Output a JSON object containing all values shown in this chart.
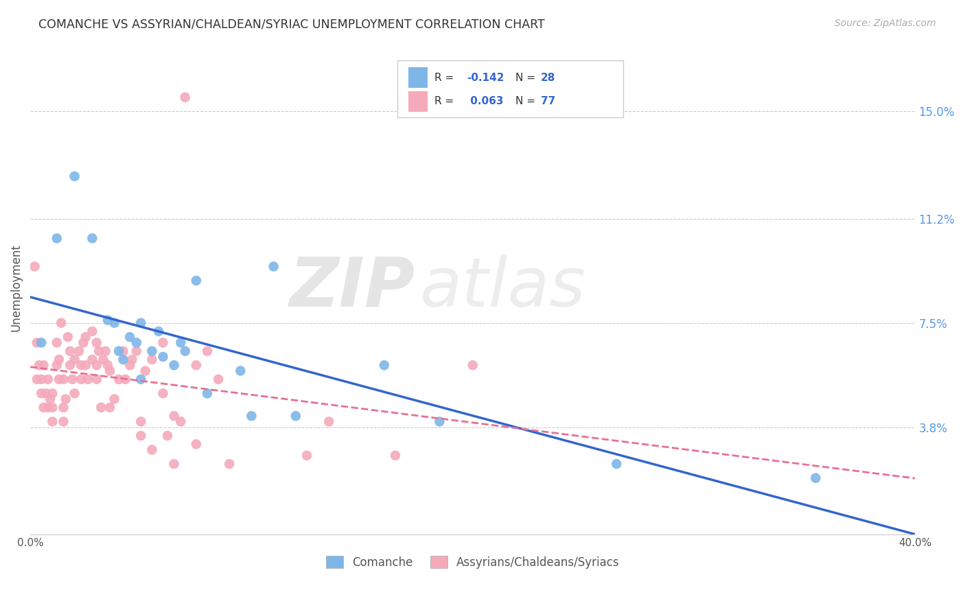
{
  "title": "COMANCHE VS ASSYRIAN/CHALDEAN/SYRIAC UNEMPLOYMENT CORRELATION CHART",
  "source": "Source: ZipAtlas.com",
  "ylabel": "Unemployment",
  "ytick_labels": [
    "15.0%",
    "11.2%",
    "7.5%",
    "3.8%"
  ],
  "ytick_values": [
    0.15,
    0.112,
    0.075,
    0.038
  ],
  "xlim": [
    0.0,
    0.4
  ],
  "ylim": [
    0.0,
    0.175
  ],
  "legend_r_comanche": "-0.142",
  "legend_n_comanche": "28",
  "legend_r_assyrian": "0.063",
  "legend_n_assyrian": "77",
  "comanche_color": "#7EB6E8",
  "assyrian_color": "#F4AABB",
  "trend_comanche_color": "#3366CC",
  "trend_assyrian_color": "#E87090",
  "watermark_zip": "ZIP",
  "watermark_atlas": "atlas",
  "comanche_points": [
    [
      0.005,
      0.068
    ],
    [
      0.012,
      0.105
    ],
    [
      0.02,
      0.127
    ],
    [
      0.028,
      0.105
    ],
    [
      0.035,
      0.076
    ],
    [
      0.038,
      0.075
    ],
    [
      0.04,
      0.065
    ],
    [
      0.042,
      0.062
    ],
    [
      0.045,
      0.07
    ],
    [
      0.048,
      0.068
    ],
    [
      0.05,
      0.055
    ],
    [
      0.05,
      0.075
    ],
    [
      0.055,
      0.065
    ],
    [
      0.058,
      0.072
    ],
    [
      0.06,
      0.063
    ],
    [
      0.065,
      0.06
    ],
    [
      0.068,
      0.068
    ],
    [
      0.07,
      0.065
    ],
    [
      0.075,
      0.09
    ],
    [
      0.08,
      0.05
    ],
    [
      0.095,
      0.058
    ],
    [
      0.1,
      0.042
    ],
    [
      0.11,
      0.095
    ],
    [
      0.12,
      0.042
    ],
    [
      0.16,
      0.06
    ],
    [
      0.185,
      0.04
    ],
    [
      0.265,
      0.025
    ],
    [
      0.355,
      0.02
    ]
  ],
  "assyrian_points": [
    [
      0.002,
      0.095
    ],
    [
      0.003,
      0.068
    ],
    [
      0.003,
      0.055
    ],
    [
      0.004,
      0.06
    ],
    [
      0.005,
      0.055
    ],
    [
      0.005,
      0.05
    ],
    [
      0.006,
      0.045
    ],
    [
      0.006,
      0.06
    ],
    [
      0.007,
      0.05
    ],
    [
      0.008,
      0.055
    ],
    [
      0.008,
      0.045
    ],
    [
      0.009,
      0.048
    ],
    [
      0.01,
      0.05
    ],
    [
      0.01,
      0.045
    ],
    [
      0.01,
      0.04
    ],
    [
      0.012,
      0.06
    ],
    [
      0.012,
      0.068
    ],
    [
      0.013,
      0.062
    ],
    [
      0.013,
      0.055
    ],
    [
      0.014,
      0.075
    ],
    [
      0.015,
      0.055
    ],
    [
      0.015,
      0.045
    ],
    [
      0.015,
      0.04
    ],
    [
      0.016,
      0.048
    ],
    [
      0.017,
      0.07
    ],
    [
      0.018,
      0.065
    ],
    [
      0.018,
      0.06
    ],
    [
      0.019,
      0.055
    ],
    [
      0.02,
      0.062
    ],
    [
      0.02,
      0.05
    ],
    [
      0.022,
      0.065
    ],
    [
      0.023,
      0.06
    ],
    [
      0.023,
      0.055
    ],
    [
      0.024,
      0.068
    ],
    [
      0.025,
      0.07
    ],
    [
      0.025,
      0.06
    ],
    [
      0.026,
      0.055
    ],
    [
      0.028,
      0.072
    ],
    [
      0.028,
      0.062
    ],
    [
      0.03,
      0.068
    ],
    [
      0.03,
      0.06
    ],
    [
      0.03,
      0.055
    ],
    [
      0.031,
      0.065
    ],
    [
      0.032,
      0.045
    ],
    [
      0.033,
      0.062
    ],
    [
      0.034,
      0.065
    ],
    [
      0.035,
      0.06
    ],
    [
      0.036,
      0.058
    ],
    [
      0.036,
      0.045
    ],
    [
      0.038,
      0.048
    ],
    [
      0.04,
      0.055
    ],
    [
      0.042,
      0.065
    ],
    [
      0.043,
      0.055
    ],
    [
      0.045,
      0.06
    ],
    [
      0.046,
      0.062
    ],
    [
      0.048,
      0.065
    ],
    [
      0.05,
      0.035
    ],
    [
      0.05,
      0.04
    ],
    [
      0.052,
      0.058
    ],
    [
      0.055,
      0.03
    ],
    [
      0.055,
      0.062
    ],
    [
      0.06,
      0.068
    ],
    [
      0.06,
      0.05
    ],
    [
      0.062,
      0.035
    ],
    [
      0.065,
      0.025
    ],
    [
      0.065,
      0.042
    ],
    [
      0.068,
      0.04
    ],
    [
      0.07,
      0.155
    ],
    [
      0.075,
      0.032
    ],
    [
      0.075,
      0.06
    ],
    [
      0.08,
      0.065
    ],
    [
      0.085,
      0.055
    ],
    [
      0.09,
      0.025
    ],
    [
      0.125,
      0.028
    ],
    [
      0.135,
      0.04
    ],
    [
      0.165,
      0.028
    ],
    [
      0.2,
      0.06
    ]
  ]
}
